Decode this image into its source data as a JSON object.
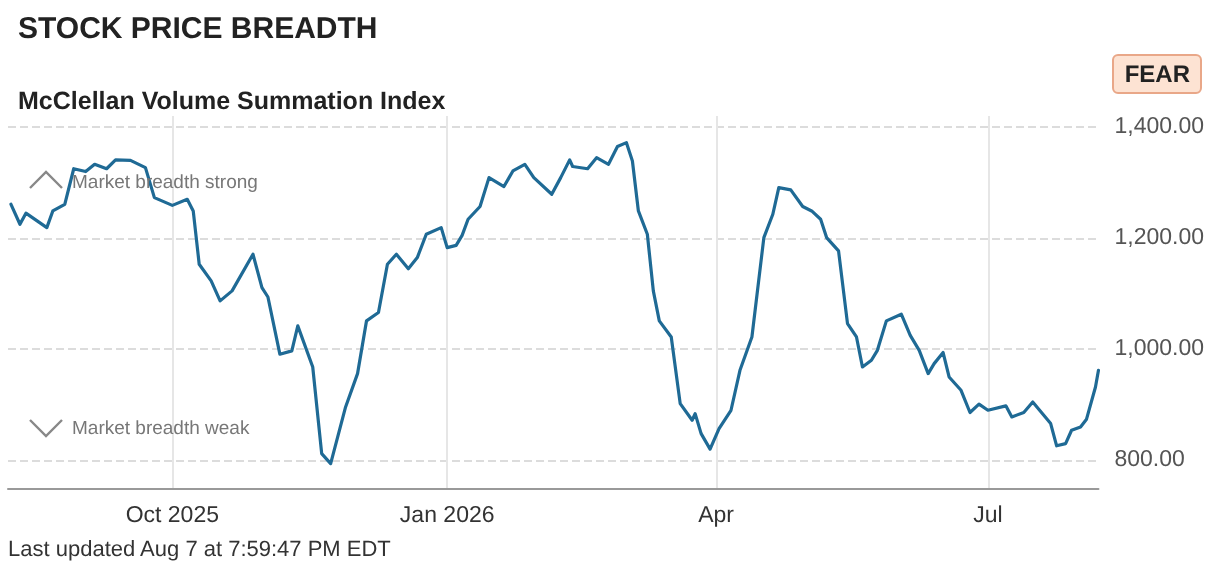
{
  "chart_data": {
    "type": "line",
    "title": "STOCK PRICE BREADTH",
    "subtitle": "McClellan Volume Summation Index",
    "annotations": [
      "FEAR",
      "Market breadth strong",
      "Market breadth weak",
      "Last updated Aug 7 at 7:59:47 PM EDT"
    ],
    "x": [
      "2025-08-08",
      "2025-08-11",
      "2025-08-13",
      "2025-08-20",
      "2025-08-22",
      "2025-08-26",
      "2025-08-29",
      "2025-09-02",
      "2025-09-05",
      "2025-09-09",
      "2025-09-12",
      "2025-09-17",
      "2025-09-22",
      "2025-09-25",
      "2025-10-01",
      "2025-10-06",
      "2025-10-08",
      "2025-10-10",
      "2025-10-14",
      "2025-10-17",
      "2025-10-21",
      "2025-10-28",
      "2025-10-31",
      "2025-11-02",
      "2025-11-06",
      "2025-11-10",
      "2025-11-12",
      "2025-11-17",
      "2025-11-20",
      "2025-11-23",
      "2025-11-28",
      "2025-12-02",
      "2025-12-05",
      "2025-12-09",
      "2025-12-12",
      "2025-12-15",
      "2025-12-19",
      "2025-12-22",
      "2025-12-25",
      "2025-12-30",
      "2026-01-01",
      "2026-01-04",
      "2026-01-06",
      "2026-01-08",
      "2026-01-12",
      "2026-01-15",
      "2026-01-20",
      "2026-01-23",
      "2026-01-27",
      "2026-01-30",
      "2026-02-05",
      "2026-02-08",
      "2026-02-11",
      "2026-02-12",
      "2026-02-17",
      "2026-02-20",
      "2026-02-24",
      "2026-02-27",
      "2026-03-02",
      "2026-03-04",
      "2026-03-06",
      "2026-03-09",
      "2026-03-11",
      "2026-03-13",
      "2026-03-17",
      "2026-03-20",
      "2026-03-24",
      "2026-03-25",
      "2026-03-27",
      "2026-03-30",
      "2026-04-02",
      "2026-04-06",
      "2026-04-09",
      "2026-04-13",
      "2026-04-17",
      "2026-04-20",
      "2026-04-22",
      "2026-04-26",
      "2026-04-30",
      "2026-05-03",
      "2026-05-06",
      "2026-05-08",
      "2026-05-12",
      "2026-05-15",
      "2026-05-18",
      "2026-05-20",
      "2026-05-23",
      "2026-05-25",
      "2026-05-28",
      "2026-06-02",
      "2026-06-05",
      "2026-06-08",
      "2026-06-11",
      "2026-06-13",
      "2026-06-16",
      "2026-06-18",
      "2026-06-22",
      "2026-06-25",
      "2026-06-28",
      "2026-07-01",
      "2026-07-07",
      "2026-07-09",
      "2026-07-13",
      "2026-07-16",
      "2026-07-22",
      "2026-07-24",
      "2026-07-27",
      "2026-07-29",
      "2026-08-01",
      "2026-08-03",
      "2026-08-06",
      "2026-08-07"
    ],
    "series": [
      {
        "color": "#1f6a95",
        "values": [
          1261,
          1225,
          1245,
          1219,
          1249,
          1261,
          1325,
          1320,
          1333,
          1325,
          1341,
          1340,
          1327,
          1273,
          1259,
          1270,
          1249,
          1153,
          1123,
          1087,
          1105,
          1171,
          1111,
          1094,
          991,
          997,
          1042,
          968,
          812,
          794,
          896,
          956,
          1051,
          1066,
          1153,
          1171,
          1145,
          1165,
          1207,
          1219,
          1183,
          1187,
          1205,
          1234,
          1257,
          1309,
          1293,
          1321,
          1333,
          1309,
          1279,
          1309,
          1341,
          1329,
          1325,
          1345,
          1333,
          1365,
          1372,
          1339,
          1249,
          1207,
          1105,
          1051,
          1022,
          902,
          872,
          884,
          848,
          820,
          857,
          890,
          962,
          1022,
          1201,
          1243,
          1291,
          1287,
          1257,
          1249,
          1234,
          1201,
          1177,
          1046,
          1022,
          968,
          980,
          998,
          1051,
          1063,
          1025,
          998,
          956,
          974,
          994,
          950,
          926,
          886,
          901,
          890,
          898,
          878,
          886,
          905,
          866,
          826,
          830,
          854,
          860,
          874,
          932,
          962
        ]
      }
    ],
    "xlim": [
      "2025-08-07",
      "2026-08-07"
    ],
    "xticks": [
      {
        "value": "2025-10-01",
        "label": "Oct 2025"
      },
      {
        "value": "2026-01-01",
        "label": "Jan 2026"
      },
      {
        "value": "2026-04-01",
        "label": "Apr"
      },
      {
        "value": "2026-07-01",
        "label": "Jul"
      }
    ],
    "ylim": [
      750,
      1420
    ],
    "yticks": [
      {
        "value": 800,
        "label": "800.00"
      },
      {
        "value": 1000,
        "label": "1,000.00"
      },
      {
        "value": 1200,
        "label": "1,200.00"
      },
      {
        "value": 1400,
        "label": "1,400.00"
      }
    ],
    "grid": true,
    "marker": "none",
    "line_style": "solid"
  }
}
